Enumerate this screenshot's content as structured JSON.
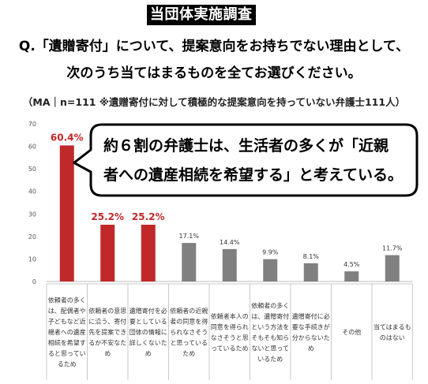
{
  "header": {
    "badge": "当団体実施調査"
  },
  "question": {
    "line1": "Q.「遺贈寄付」について、提案意向をお持ちでない理由として、",
    "line2": "次のうち当てはまるものを全てお選びください。"
  },
  "note": "（MA｜n=111 ※遺贈寄付に対して積極的な提案意向を持っていない弁護士111人）",
  "callout": {
    "line1": "約６割の弁護士は、生活者の多くが「近親",
    "line2": "者への遺産相続を希望する」と考えている。"
  },
  "colors": {
    "highlight": "#c0282a",
    "normal": "#808080",
    "callout_border": "#000000"
  },
  "chart_data": {
    "type": "bar",
    "ylim": [
      0,
      70
    ],
    "yticks": [
      0,
      10,
      20,
      30,
      40,
      50,
      60,
      70
    ],
    "grid": false,
    "categories": [
      "依頼者の多くは、配偶者や子どもなど近親者への遺産相続を希望すると思っているため",
      "依頼者の意思に沿う、寄付先を提案できるか不安なため",
      "遺贈寄付を必要としている団体の情報に詳しくないため",
      "依頼者の近親者の同意を得られなさそうと思っているため",
      "依頼者本人の同意を得られなさそうと思っているため",
      "依頼者の多くは、遺贈寄付という方法をそもそも知らないと思っているため",
      "遺贈寄付に必要な手続きが分からないため",
      "その他",
      "当てはまるものはない"
    ],
    "values": [
      60.4,
      25.2,
      25.2,
      17.1,
      14.4,
      9.9,
      8.1,
      4.5,
      11.7
    ],
    "value_labels": [
      "60.4%",
      "25.2%",
      "25.2%",
      "17.1%",
      "14.4%",
      "9.9%",
      "8.1%",
      "4.5%",
      "11.7%"
    ],
    "highlighted": [
      true,
      true,
      true,
      false,
      false,
      false,
      false,
      false,
      false
    ]
  }
}
